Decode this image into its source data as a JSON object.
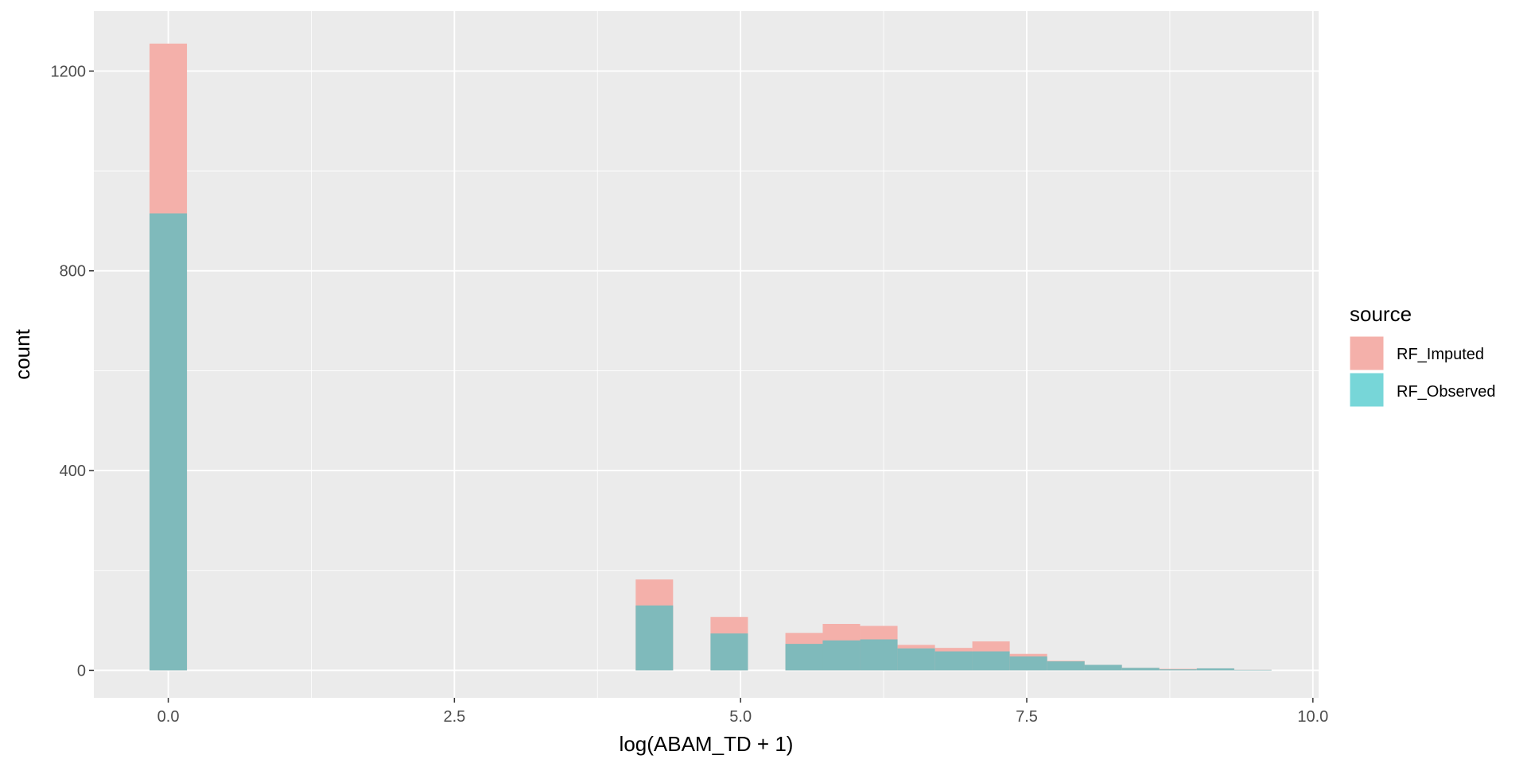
{
  "chart_data": {
    "type": "bar",
    "xlabel": "log(ABAM_TD + 1)",
    "ylabel": "count",
    "xlim": [
      -0.65,
      10.05
    ],
    "ylim": [
      -55,
      1320
    ],
    "xticks": [
      0.0,
      2.5,
      5.0,
      7.5,
      10.0
    ],
    "xtick_labels": [
      "0.0",
      "2.5",
      "5.0",
      "7.5",
      "10.0"
    ],
    "yticks": [
      0,
      400,
      800,
      1200
    ],
    "ytick_labels": [
      "0",
      "400",
      "800",
      "1200"
    ],
    "grid": true,
    "legend_position": "right",
    "legend": {
      "title": "source",
      "entries": [
        {
          "label": "RF_Imputed",
          "color": "#F8766D"
        },
        {
          "label": "RF_Observed",
          "color": "#00BFC4"
        }
      ]
    },
    "colors": {
      "RF_Imputed_fill": "#F4B0AA",
      "RF_Observed_fill": "#7FBABB",
      "RF_Observed_legend": "#77D6D8",
      "panel_background": "#EBEBEB",
      "grid": "#FFFFFF"
    },
    "bin_width": 0.3267,
    "series": [
      {
        "name": "RF_Imputed",
        "x": [
          0.0,
          4.247,
          4.901,
          5.555,
          5.881,
          6.208,
          6.535,
          6.862,
          7.188,
          7.515,
          7.842,
          8.168,
          8.495,
          8.822,
          9.149,
          9.475
        ],
        "values": [
          1255,
          182,
          107,
          75,
          93,
          89,
          51,
          45,
          58,
          33,
          19,
          11,
          5,
          3,
          4,
          1
        ]
      },
      {
        "name": "RF_Observed",
        "x": [
          0.0,
          4.247,
          4.901,
          5.555,
          5.881,
          6.208,
          6.535,
          6.862,
          7.188,
          7.515,
          7.842,
          8.168,
          8.495,
          8.822,
          9.149,
          9.475
        ],
        "values": [
          915,
          130,
          74,
          53,
          60,
          62,
          44,
          38,
          38,
          28,
          18,
          11,
          5,
          2,
          4,
          1
        ]
      }
    ]
  }
}
